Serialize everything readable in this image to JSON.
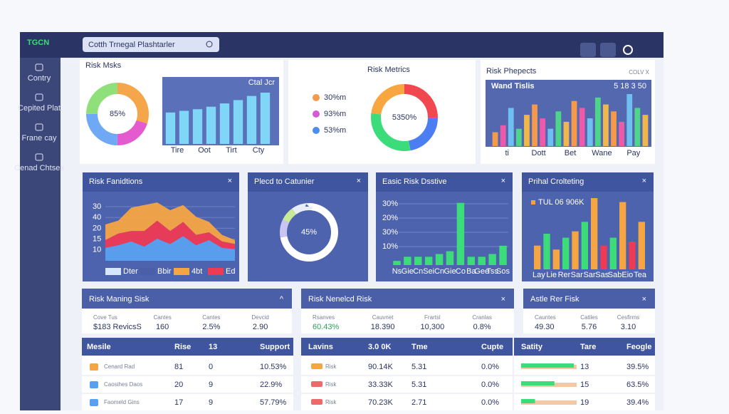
{
  "app": {
    "logo": "TGCN",
    "search": "Cotth Trnegal Plashtarler"
  },
  "sidebar": [
    "Contry",
    "Cepited Plat",
    "Frane cay",
    "Cenad Chtses"
  ],
  "row1": [
    {
      "title": "Risk Msks",
      "donut": {
        "label": "85%",
        "values": [
          30,
          20,
          25,
          25
        ],
        "colors": [
          "#f5a54a",
          "#e45bd0",
          "#6fa8f5",
          "#8fe07a"
        ]
      },
      "bars": {
        "legend": "Ctal Jcr",
        "values": [
          38,
          40,
          42,
          45,
          49,
          53,
          58,
          62
        ],
        "color": "#7fd6f7",
        "xlabels": [
          "Tire",
          "Oot",
          "Tirt",
          "Cty"
        ]
      }
    },
    {
      "title": "Risk Metrics",
      "legend": [
        {
          "label": "30%m",
          "color": "#f59a4a"
        },
        {
          "label": "93%m",
          "color": "#d65ad8"
        },
        {
          "label": "53%m",
          "color": "#4a8ef0"
        }
      ],
      "donut": {
        "label": "5350%",
        "values": [
          25,
          22,
          30,
          23
        ],
        "colors": [
          "#f0484e",
          "#4b7ef2",
          "#3ddc7a",
          "#f7a640"
        ]
      }
    },
    {
      "title": "Risk Phepects",
      "corner": "COLV X",
      "box": "Wand Tislis",
      "boxnote": "5 18 3 50",
      "bars": {
        "values": [
          20,
          30,
          55,
          25,
          45,
          60,
          40,
          25,
          50,
          35,
          65,
          55,
          40,
          70,
          60,
          50,
          35,
          75,
          55,
          45
        ],
        "colors": [
          "#f59a4a",
          "#ef5aa8",
          "#6fc0f0",
          "#4fd58a",
          "#f0b84a"
        ],
        "xlabels": [
          "ti",
          "Dott",
          "Bet",
          "Wane",
          "Pay"
        ]
      }
    }
  ],
  "row2": [
    {
      "title": "Risk Fanidtions",
      "close": "×",
      "ylabels": [
        "30",
        "40",
        "20",
        "15",
        "10"
      ],
      "ylim": [
        0,
        50
      ],
      "series": [
        {
          "color": "#5aa0f0",
          "values": [
            10,
            12,
            15,
            11,
            17,
            13,
            19,
            12,
            16,
            10,
            9
          ]
        },
        {
          "color": "#ee3a55",
          "values": [
            6,
            9,
            8,
            12,
            14,
            10,
            11,
            8,
            6,
            5,
            4
          ]
        },
        {
          "color": "#f6a543",
          "values": [
            12,
            10,
            18,
            20,
            14,
            16,
            13,
            14,
            8,
            5,
            3
          ]
        }
      ],
      "legend": [
        "Dter",
        "Bbir",
        "4bt",
        "Ed"
      ]
    },
    {
      "title": "Plecd to Catunier",
      "close": "×",
      "donut": {
        "label": "45%",
        "values": [
          72,
          10,
          8,
          10
        ],
        "colors": [
          "#ffffff",
          "#c9c5f0",
          "#c8e89a",
          "#e8eef9"
        ]
      }
    },
    {
      "title": "Easic Risk Dsstive",
      "close": "×",
      "ylabels": [
        "30%",
        "20%",
        "30%",
        "10%"
      ],
      "ylim": [
        0,
        50
      ],
      "bars": {
        "values": [
          3,
          6,
          6,
          6,
          8,
          10,
          45,
          6,
          6,
          8,
          14
        ],
        "color": "#3ddc7a",
        "xlabels": [
          "Ns",
          "Gie",
          "Cn",
          "Sei",
          "Cn",
          "Gie",
          "Co",
          "Ba",
          "Gee",
          "Tss",
          "Sos"
        ]
      }
    },
    {
      "title": "Prihal Crolteting",
      "close": "×",
      "legend": {
        "label": "TUL 06 906K",
        "color": "#f5a043"
      },
      "bars": {
        "values": [
          30,
          45,
          25,
          40,
          48,
          60,
          90,
          30,
          40,
          85,
          35,
          60
        ],
        "colors": [
          "#f6a543",
          "#3ddc7a",
          "#f6a543",
          "#3ddc7a",
          "#f6a543",
          "#3ddc7a",
          "#f6a543",
          "#ee3a55",
          "#3ddc7a",
          "#f6a543",
          "#ee3a55",
          "#f6a543"
        ],
        "xlabels": [
          "Lay",
          "Lie",
          "Rer",
          "Sar",
          "Sar",
          "Sas",
          "Sab",
          "Eio",
          "Tea"
        ]
      }
    }
  ],
  "stats": [
    {
      "title": "Risk Maning Sisk",
      "icon": "^",
      "labels": [
        "Cove Tus",
        "Cantes",
        "Cantes",
        "Devcid"
      ],
      "values": [
        "$183 RevicsS",
        "160",
        "2.5%",
        "2.90"
      ]
    },
    {
      "title": "Risk Nenelcd Risk",
      "icon": "×",
      "labels": [
        "Rsanves",
        "Cauvnet",
        "Frartsl",
        "Cranlas"
      ],
      "values": [
        "60.43%",
        "18.390",
        "10,300",
        "0.8%"
      ]
    },
    {
      "title": "Astle Rer Fisk",
      "icon": "×",
      "labels": [
        "Cauntes",
        "Catiles",
        "Cesfirms"
      ],
      "values": [
        "49.30",
        "5.76",
        "3.10"
      ]
    }
  ],
  "tables": [
    {
      "header": [
        "Mesile",
        "Rise",
        "13",
        "Support"
      ],
      "swatches": [
        "#f6a543",
        "#5aa0f0",
        "#5aa0f0"
      ],
      "rows": [
        [
          "Cenard Rad",
          "81",
          "0",
          "10.53%"
        ],
        [
          "Caosihes Daos",
          "20",
          "9",
          "22.9%"
        ],
        [
          "Faomeld Gins",
          "17",
          "9",
          "57.79%"
        ]
      ]
    },
    {
      "header": [
        "Lavins",
        "3.0 0K",
        "Tme",
        "Cupte"
      ],
      "swatches": [
        "#f6a543",
        "#ee6a6a",
        "#ee6a6a"
      ],
      "rows": [
        [
          "Risk",
          "90.14K",
          "5.31",
          "0.0%"
        ],
        [
          "Risk",
          "33.33K",
          "5.31",
          "0.0%"
        ],
        [
          "Risk",
          "70.23K",
          "2.71",
          "0.0%"
        ]
      ]
    },
    {
      "header": [
        "Satity",
        "Tare",
        "Feogle"
      ],
      "progress": [
        95,
        60,
        25
      ],
      "rows": [
        [
          "13",
          "39.5%"
        ],
        [
          "15",
          "63.5%"
        ],
        [
          "19",
          "39.4%"
        ]
      ]
    }
  ]
}
